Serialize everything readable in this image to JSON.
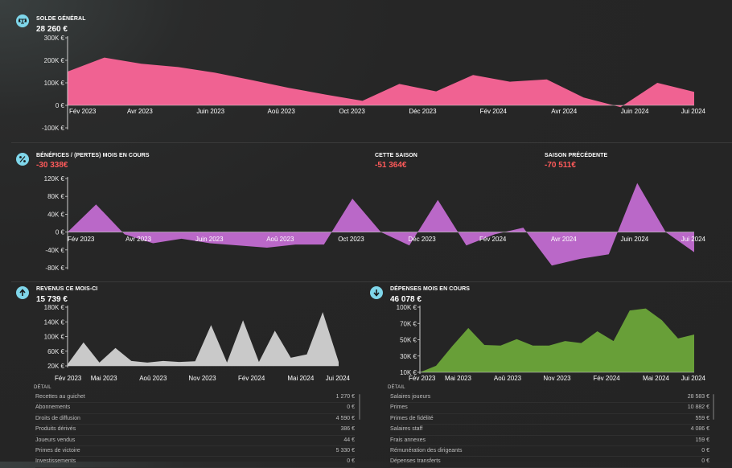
{
  "balance": {
    "title": "SOLDE GÉNÉRAL",
    "value": "28 260 €",
    "icon": "balance-scale-icon",
    "chart_data": {
      "type": "area",
      "color": "#f06292",
      "y_ticks": [
        "300K €",
        "200K €",
        "100K €",
        "0 €",
        "-100K €"
      ],
      "y_range": [
        -100000,
        300000
      ],
      "x_tick_labels": [
        "Fév 2023",
        "Avr 2023",
        "Juin 2023",
        "Aoû 2023",
        "Oct 2023",
        "Déc 2023",
        "Fév 2024",
        "Avr 2024",
        "Juin 2024",
        "Jui 2024"
      ],
      "values": [
        150000,
        212000,
        185000,
        170000,
        145000,
        112000,
        78000,
        48000,
        20000,
        95000,
        62000,
        135000,
        105000,
        115000,
        35000,
        -8000,
        100000,
        60000
      ]
    }
  },
  "profits": {
    "title": "BÉNÉFICES / (PERTES) MOIS EN COURS",
    "value": "-30 338€",
    "season_title": "CETTE SAISON",
    "season_value": "-51 364€",
    "prev_title": "SAISON PRÉCÉDENTE",
    "prev_value": "-70 511€",
    "icon": "percent-icon",
    "chart_data": {
      "type": "area",
      "color": "#ba68c8",
      "y_ticks": [
        "120K €",
        "80K €",
        "40K €",
        "0 €",
        "-40K €",
        "-80K €"
      ],
      "y_range": [
        -80000,
        120000
      ],
      "x_tick_labels": [
        "Fév 2023",
        "Avr 2023",
        "Juin 2023",
        "Aoû 2023",
        "Oct 2023",
        "Déc 2023",
        "Fév 2024",
        "Avr 2024",
        "Juin 2024",
        "Jui 2024"
      ],
      "values": [
        0,
        62000,
        -5000,
        -25000,
        -15000,
        -25000,
        -30000,
        -35000,
        -28000,
        -28000,
        75000,
        0,
        -30000,
        72000,
        -30000,
        -5000,
        10000,
        -75000,
        -60000,
        -50000,
        110000,
        0,
        -45000
      ]
    }
  },
  "revenue": {
    "title": "REVENUS CE MOIS-CI",
    "value": "15 739 €",
    "icon": "arrow-up-icon",
    "chart_data": {
      "type": "area",
      "color": "#c9c9c9",
      "y_ticks": [
        "180K €",
        "140K €",
        "100K €",
        "60K €",
        "20K €"
      ],
      "y_range": [
        0,
        180000
      ],
      "x_tick_labels": [
        "Fév 2023",
        "Mai 2023",
        "Aoû 2023",
        "Nov 2023",
        "Fév 2024",
        "Mai 2024",
        "Jui 2024"
      ],
      "values": [
        5000,
        72000,
        10000,
        55000,
        15000,
        10000,
        15000,
        12000,
        14000,
        125000,
        10000,
        140000,
        12000,
        108000,
        25000,
        35000,
        165000,
        12000
      ]
    },
    "detail_title": "DÉTAIL",
    "details": [
      {
        "label": "Recettes au guichet",
        "value": "1 270 €"
      },
      {
        "label": "Abonnements",
        "value": "0 €"
      },
      {
        "label": "Droits de diffusion",
        "value": "4 590 €"
      },
      {
        "label": "Produits dérivés",
        "value": "386 €"
      },
      {
        "label": "Joueurs vendus",
        "value": "44 €"
      },
      {
        "label": "Primes de victoire",
        "value": "5 330 €"
      },
      {
        "label": "Investissements",
        "value": "0 €"
      }
    ]
  },
  "expenses": {
    "title": "DÉPENSES MOIS EN COURS",
    "value": "46 078 €",
    "icon": "arrow-down-icon",
    "chart_data": {
      "type": "area",
      "color": "#689f38",
      "y_ticks": [
        "100K €",
        "70K €",
        "50K €",
        "30K €",
        "10K €"
      ],
      "y_range": [
        0,
        100000
      ],
      "x_tick_labels": [
        "Fév 2023",
        "Mai 2023",
        "Aoû 2023",
        "Nov 2023",
        "Fév 2024",
        "Mai 2024",
        "Jui 2024"
      ],
      "values": [
        0,
        10000,
        40000,
        68000,
        42000,
        41000,
        51000,
        41000,
        41000,
        48000,
        45000,
        63000,
        48000,
        95000,
        98000,
        80000,
        52000,
        58000
      ]
    },
    "detail_title": "DÉTAIL",
    "details": [
      {
        "label": "Salaires joueurs",
        "value": "28 583 €"
      },
      {
        "label": "Primes",
        "value": "10 882 €"
      },
      {
        "label": "Primes de fidélité",
        "value": "559 €"
      },
      {
        "label": "Salaires staff",
        "value": "4 086 €"
      },
      {
        "label": "Frais annexes",
        "value": "159 €"
      },
      {
        "label": "Rémunération des dirigeants",
        "value": "0 €"
      },
      {
        "label": "Dépenses transferts",
        "value": "0 €"
      }
    ]
  }
}
